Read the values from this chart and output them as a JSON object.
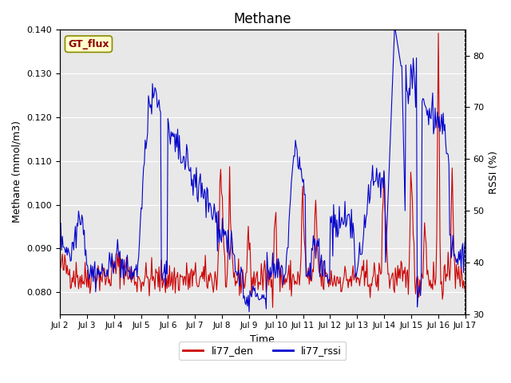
{
  "title": "Methane",
  "ylabel_left": "Methane (mmol/m3)",
  "ylabel_right": "RSSI (%)",
  "xlabel": "Time",
  "ylim_left": [
    0.075,
    0.14
  ],
  "ylim_right": [
    30,
    85
  ],
  "xtick_labels": [
    "Jul 2",
    "Jul 3",
    "Jul 4",
    "Jul 5",
    "Jul 6",
    "Jul 7",
    "Jul 8",
    "Jul 9",
    "Jul 10",
    "Jul 11",
    "Jul 12",
    "Jul 13",
    "Jul 14",
    "Jul 15",
    "Jul 16",
    "Jul 17"
  ],
  "legend_labels": [
    "li77_den",
    "li77_rssi"
  ],
  "legend_colors": [
    "#cc0000",
    "#0000cc"
  ],
  "gt_flux_label": "GT_flux",
  "background_color": "#e8e8e8",
  "line_color_red": "#cc0000",
  "line_color_blue": "#0000cc"
}
